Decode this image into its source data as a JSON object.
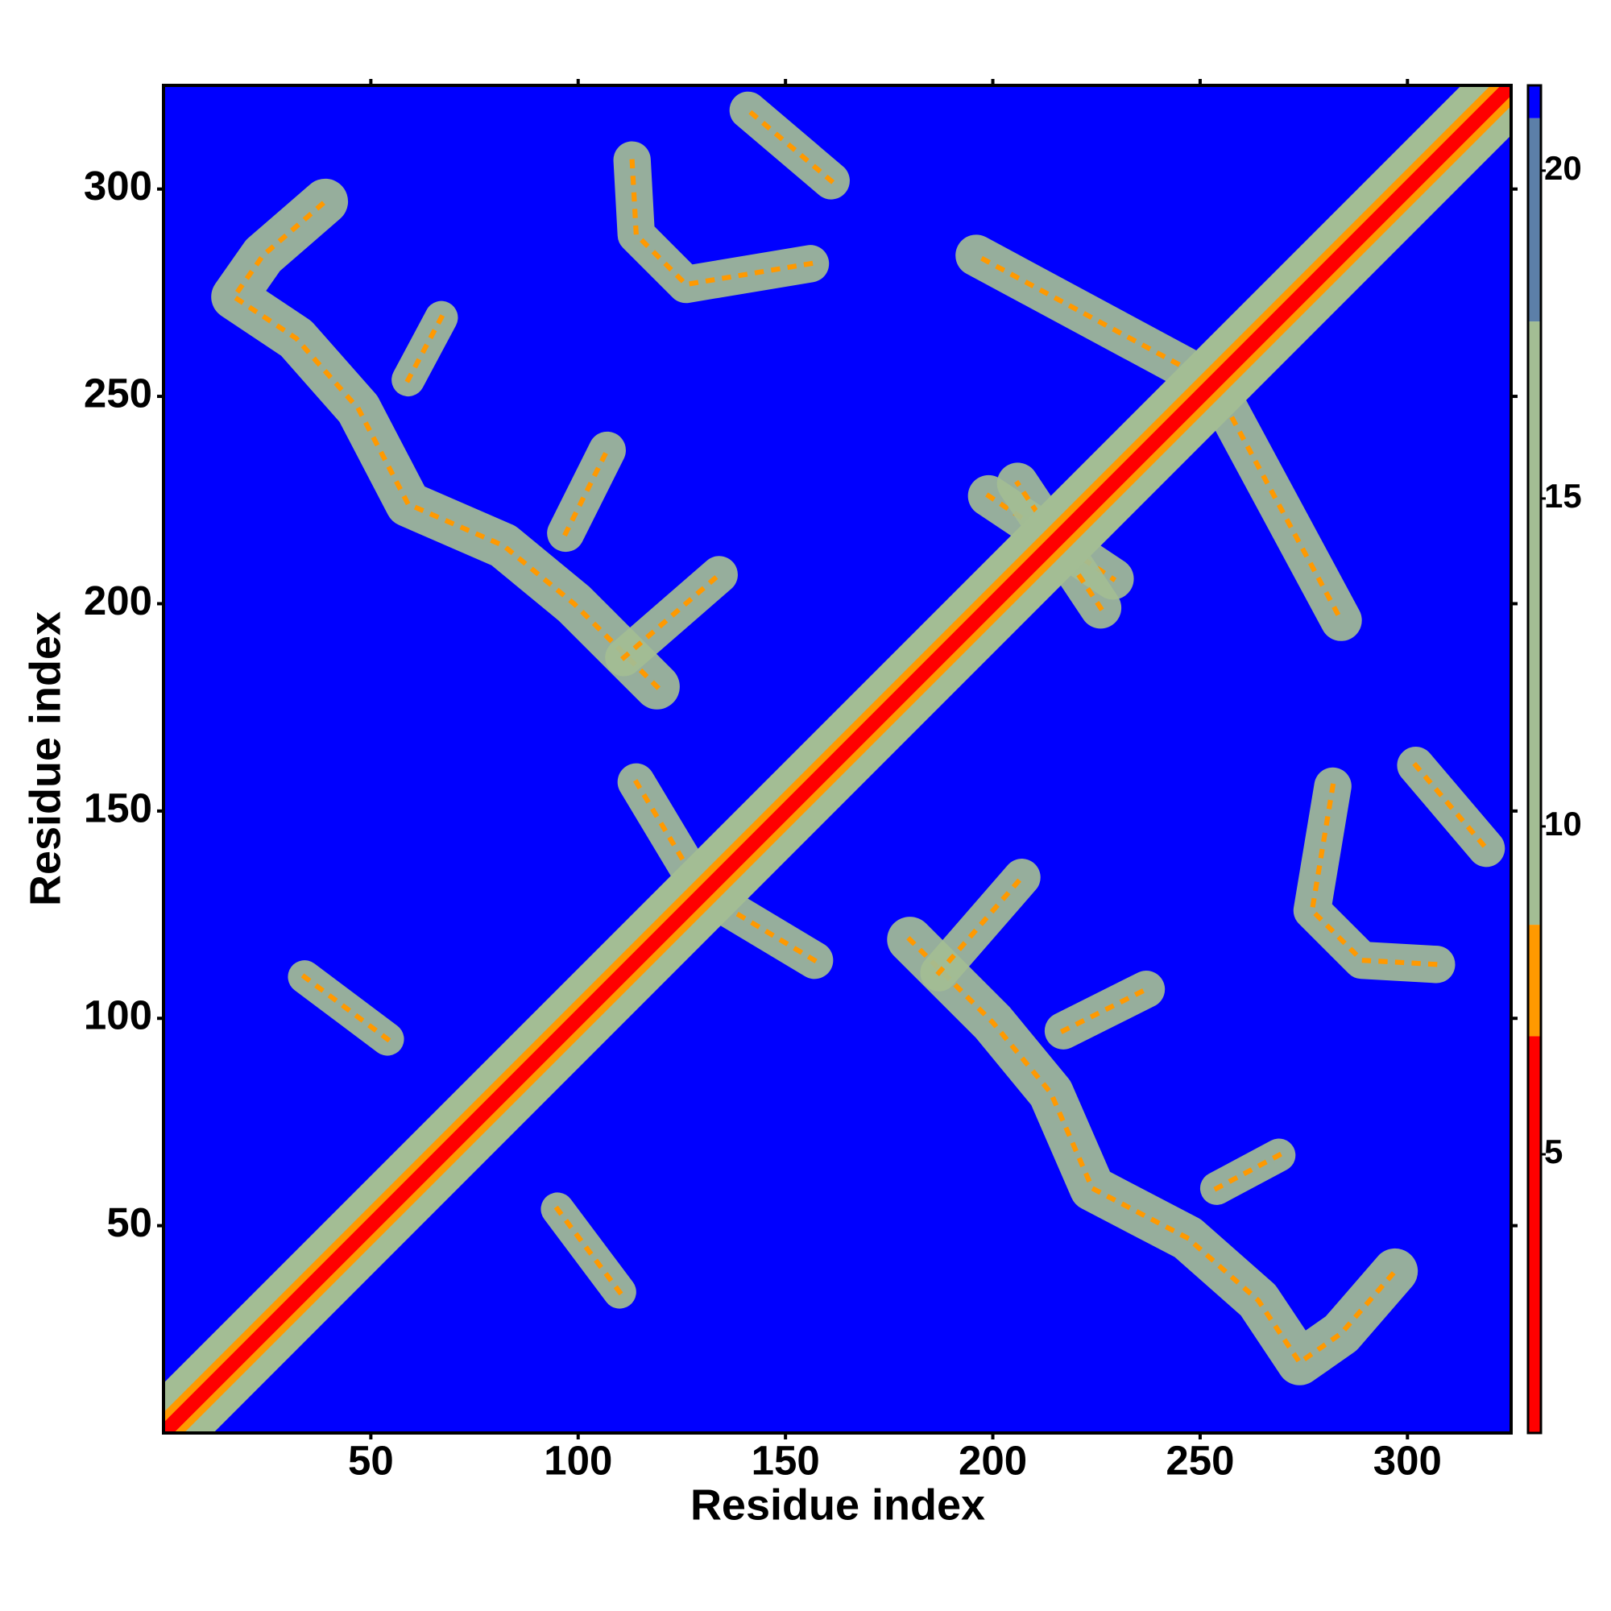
{
  "chart_data": {
    "type": "contact_map",
    "xlabel": "Residue index",
    "ylabel": "Residue index",
    "xlim": [
      0,
      325
    ],
    "ylim": [
      0,
      325
    ],
    "xticks": [
      50,
      100,
      150,
      200,
      250,
      300
    ],
    "yticks": [
      50,
      100,
      150,
      200,
      250,
      300
    ],
    "zlim": [
      0.75,
      21.3
    ],
    "zticks": [
      5,
      10,
      15,
      20
    ],
    "colorscale": [
      {
        "value": 6.8,
        "color": "#ff0000"
      },
      {
        "value": 8.5,
        "color": "#ff9900"
      },
      {
        "value": 17.7,
        "color": "#a3bd94"
      },
      {
        "value": 20.8,
        "color": "#5c7fa8"
      },
      {
        "value": 21.3,
        "color": "#0000ff"
      }
    ],
    "background": "#0000ff",
    "accent": "#ff9900",
    "symmetric": true,
    "diagonal": [
      {
        "width": 17,
        "color": "#a3bd94"
      },
      {
        "width": 7,
        "color": "#ff9900"
      },
      {
        "width": 3.5,
        "color": "#ff0000"
      }
    ],
    "features": [
      {
        "x": [
          180,
          200,
          214,
          224,
          247,
          264,
          274,
          284,
          297
        ],
        "y": [
          119,
          99,
          82,
          59,
          47,
          32,
          17,
          24,
          39
        ],
        "width": 11,
        "color": "#a3bd94"
      },
      {
        "x": [
          217,
          237
        ],
        "y": [
          97,
          107
        ],
        "width": 9,
        "color": "#a3bd94"
      },
      {
        "x": [
          187,
          207
        ],
        "y": [
          111,
          134
        ],
        "width": 9,
        "color": "#a3bd94"
      },
      {
        "x": [
          282,
          277,
          289,
          307
        ],
        "y": [
          156,
          126,
          114,
          113
        ],
        "width": 9,
        "color": "#a3bd94"
      },
      {
        "x": [
          302,
          319
        ],
        "y": [
          161,
          141
        ],
        "width": 9,
        "color": "#a3bd94"
      },
      {
        "x": [
          254,
          269
        ],
        "y": [
          59,
          67
        ],
        "width": 8,
        "color": "#a3bd94"
      },
      {
        "x": [
          132,
          157
        ],
        "y": [
          129,
          114
        ],
        "width": 9,
        "color": "#a3bd94"
      },
      {
        "x": [
          95,
          110
        ],
        "y": [
          54,
          34
        ],
        "width": 8,
        "color": "#a3bd94"
      },
      {
        "x": [
          256,
          284
        ],
        "y": [
          248,
          196
        ],
        "width": 10,
        "color": "#a3bd94"
      },
      {
        "x": [
          199,
          229
        ],
        "y": [
          226,
          206
        ],
        "width": 10,
        "color": "#a3bd94"
      }
    ]
  }
}
